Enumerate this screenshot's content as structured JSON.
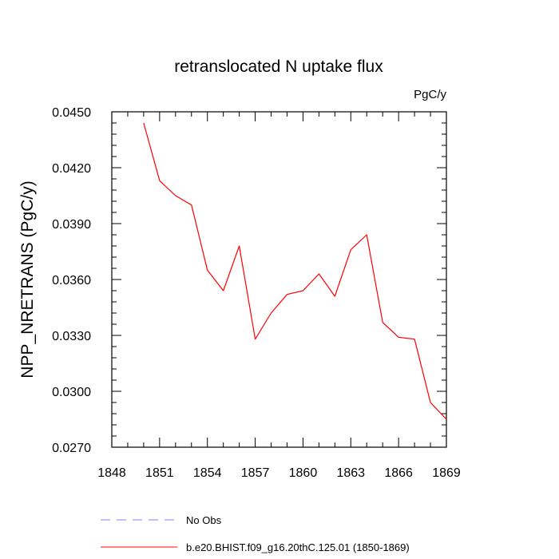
{
  "chart_data": {
    "type": "line",
    "title": "retranslocated N uptake flux",
    "units_label": "PgC/y",
    "xlabel": "",
    "ylabel": "NPP_NRETRANS  (PgC/y)",
    "xlim": [
      1848,
      1869
    ],
    "ylim": [
      0.027,
      0.045
    ],
    "x_ticks": [
      1848,
      1851,
      1854,
      1857,
      1860,
      1863,
      1866,
      1869
    ],
    "x_tick_labels": [
      "1848",
      "1851",
      "1854",
      "1857",
      "1860",
      "1863",
      "1866",
      "1869"
    ],
    "y_ticks": [
      0.027,
      0.03,
      0.033,
      0.036,
      0.039,
      0.042,
      0.045
    ],
    "y_tick_labels": [
      "0.0270",
      "0.0300",
      "0.0330",
      "0.0360",
      "0.0390",
      "0.0420",
      "0.0450"
    ],
    "series": [
      {
        "name": "b.e20.BHIST.f09_g16.20thC.125.01 (1850-1869)",
        "color": "#ff0000",
        "dash": "solid",
        "x": [
          1850,
          1851,
          1852,
          1853,
          1854,
          1855,
          1856,
          1857,
          1858,
          1859,
          1860,
          1861,
          1862,
          1863,
          1864,
          1865,
          1866,
          1867,
          1868,
          1869
        ],
        "y": [
          0.0444,
          0.0413,
          0.0405,
          0.04,
          0.0365,
          0.0354,
          0.0378,
          0.0328,
          0.0342,
          0.0352,
          0.0354,
          0.0363,
          0.0351,
          0.0376,
          0.0384,
          0.0337,
          0.0329,
          0.0328,
          0.0294,
          0.0285
        ]
      }
    ],
    "legend": [
      {
        "label": "No Obs",
        "color": "#8080ff",
        "dash": "dashed"
      },
      {
        "label": "b.e20.BHIST.f09_g16.20thC.125.01 (1850-1869)",
        "color": "#ff0000",
        "dash": "solid"
      }
    ],
    "legend_position": "bottom",
    "grid": false
  }
}
